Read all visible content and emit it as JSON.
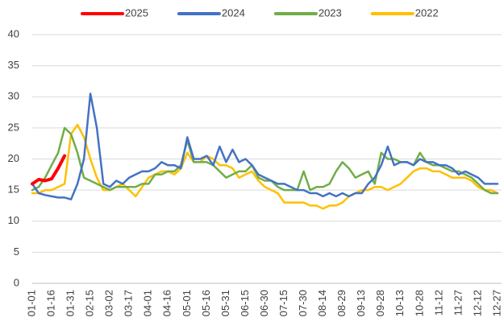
{
  "chart_data": {
    "type": "line",
    "categories": [
      "01-01",
      null,
      null,
      "01-16",
      null,
      null,
      "01-31",
      null,
      null,
      "02-15",
      null,
      null,
      "03-02",
      null,
      null,
      "03-17",
      null,
      null,
      "04-01",
      null,
      null,
      "04-16",
      null,
      null,
      "05-01",
      null,
      null,
      "05-16",
      null,
      null,
      "05-31",
      null,
      null,
      "06-15",
      null,
      null,
      "06-30",
      null,
      null,
      "07-15",
      null,
      null,
      "07-30",
      null,
      null,
      "08-14",
      null,
      null,
      "08-29",
      null,
      null,
      "09-13",
      null,
      null,
      "09-28",
      null,
      null,
      "10-13",
      null,
      null,
      "10-28",
      null,
      null,
      "11-12",
      null,
      null,
      "11-27",
      null,
      null,
      "12-12",
      null,
      null,
      "12-27"
    ],
    "series": [
      {
        "name": "2025",
        "color": "#ff0000",
        "values": [
          16,
          16.7,
          16.5,
          16.8,
          18.5,
          20.5,
          null,
          null,
          null,
          null,
          null,
          null,
          null,
          null,
          null,
          null,
          null,
          null,
          null,
          null,
          null,
          null,
          null,
          null,
          null,
          null,
          null,
          null,
          null,
          null,
          null,
          null,
          null,
          null,
          null,
          null,
          null,
          null,
          null,
          null,
          null,
          null,
          null,
          null,
          null,
          null,
          null,
          null,
          null,
          null,
          null,
          null,
          null,
          null,
          null,
          null,
          null,
          null,
          null,
          null,
          null,
          null,
          null,
          null,
          null,
          null,
          null,
          null,
          null,
          null,
          null,
          null,
          null
        ]
      },
      {
        "name": "2024",
        "color": "#4472c4",
        "values": [
          16,
          14.5,
          14.2,
          14,
          13.8,
          13.8,
          13.5,
          16,
          20,
          30.5,
          25,
          16,
          15.5,
          16.5,
          16,
          17,
          17.5,
          18,
          18,
          18.5,
          19.5,
          19,
          19,
          18.5,
          23.5,
          20,
          20,
          20.5,
          19,
          22,
          19.5,
          21.5,
          19.5,
          20,
          19,
          17.5,
          17,
          16.5,
          16,
          16,
          15.5,
          15,
          15,
          14.5,
          14.5,
          14,
          14.5,
          14,
          14.5,
          14,
          14.5,
          14.5,
          16,
          17,
          19,
          22,
          19,
          19.5,
          19.5,
          19,
          20,
          19.5,
          19.5,
          19,
          19,
          18.5,
          17.5,
          18,
          17.5,
          17,
          16,
          16,
          16
        ]
      },
      {
        "name": "2023",
        "color": "#70ad47",
        "values": [
          15,
          15.5,
          17,
          19,
          21,
          25,
          24,
          21,
          17,
          16.5,
          16,
          15.5,
          15,
          15.5,
          15.5,
          15.5,
          15.5,
          16,
          16,
          17.5,
          17.5,
          18,
          18,
          19,
          23,
          19.5,
          19.5,
          19.5,
          19,
          18,
          17,
          17.5,
          18,
          18,
          19,
          17,
          16.5,
          16.5,
          15.5,
          15,
          15,
          15,
          18,
          15,
          15.5,
          15.5,
          16,
          18,
          19.5,
          18.5,
          17,
          17.5,
          18,
          16,
          21,
          20,
          20,
          19.5,
          19.5,
          19,
          21,
          19.5,
          19,
          19,
          18.5,
          18,
          18,
          17.5,
          17,
          16,
          15,
          14.5,
          14.5
        ]
      },
      {
        "name": "2022",
        "color": "#ffc000",
        "values": [
          14.5,
          14.5,
          15,
          15,
          15.5,
          16,
          24,
          25.5,
          23.5,
          20,
          17,
          15,
          15,
          15.5,
          16,
          15,
          14,
          15.5,
          17,
          17.5,
          18,
          18,
          17.5,
          18.5,
          21,
          19.5,
          19.5,
          20.5,
          20,
          19,
          19,
          18.5,
          17,
          17.5,
          18,
          16.5,
          15.5,
          15,
          14.5,
          13,
          13,
          13,
          13,
          12.5,
          12.5,
          12,
          12.5,
          12.5,
          13,
          14,
          14.5,
          15,
          15,
          15.5,
          15.5,
          15,
          15.5,
          16,
          17,
          18,
          18.5,
          18.5,
          18,
          18,
          17.5,
          17,
          17,
          17,
          16.5,
          15.5,
          15,
          15,
          14.5
        ]
      }
    ],
    "ylim": [
      0,
      40
    ],
    "yticks": [
      0,
      5,
      10,
      15,
      20,
      25,
      30,
      35,
      40
    ],
    "grid": true
  }
}
